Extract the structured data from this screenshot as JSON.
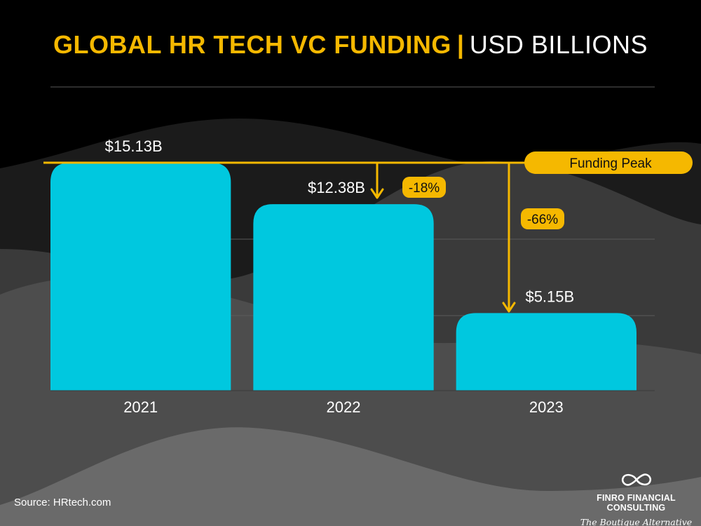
{
  "title": {
    "main": "GLOBAL HR TECH VC FUNDING",
    "separator": "|",
    "sub": "USD BILLIONS"
  },
  "source": "Source: HRtech.com",
  "logo": {
    "icon": "infinity-icon",
    "brand": "FINRO FINANCIAL CONSULTING",
    "tagline": "The Boutique Alternative"
  },
  "colors": {
    "background": "#000000",
    "bar": "#00c8df",
    "accent": "#f5b800",
    "text": "#ffffff"
  },
  "chart_data": {
    "type": "bar",
    "categories": [
      "2021",
      "2022",
      "2023"
    ],
    "values": [
      15.13,
      12.38,
      5.15
    ],
    "value_labels": [
      "$15.13B",
      "$12.38B",
      "$5.15B"
    ],
    "ylim": [
      0,
      15.13
    ],
    "grid": true,
    "annotations": {
      "peak_label": "Funding Peak",
      "peak_value": 15.13,
      "changes": [
        {
          "from": "2021",
          "to": "2022",
          "label": "-18%"
        },
        {
          "from": "2021",
          "to": "2023",
          "label": "-66%"
        }
      ]
    }
  }
}
